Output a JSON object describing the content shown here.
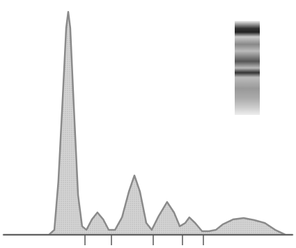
{
  "chart_data": {
    "type": "area",
    "x": [
      0,
      15.7,
      17.6,
      19.0,
      20.5,
      21.7,
      22.4,
      23.1,
      24.3,
      25.8,
      27.2,
      28.7,
      30.6,
      32.5,
      34.5,
      36.4,
      38.6,
      41.0,
      43.4,
      45.3,
      47.2,
      49.4,
      51.3,
      53.7,
      56.6,
      59.0,
      61.0,
      62.9,
      64.3,
      66.3,
      68.7,
      71.1,
      73.5,
      75.9,
      79.5,
      83.1,
      86.7,
      90.4,
      94.0,
      97.6,
      100
    ],
    "values": [
      0,
      0,
      2.2,
      24.1,
      61.6,
      92.8,
      100,
      92.8,
      58.4,
      17.8,
      3.8,
      2.2,
      6.9,
      10,
      6.9,
      2.2,
      2.2,
      7.8,
      19.4,
      26.6,
      19.4,
      5.3,
      2.2,
      8.4,
      14.7,
      10,
      3.8,
      5.3,
      7.8,
      5.3,
      1.6,
      1.6,
      2.2,
      4.7,
      6.9,
      7.5,
      6.6,
      5.3,
      2.2,
      0,
      0
    ],
    "xlim": [
      0,
      100
    ],
    "ylim": [
      0,
      100
    ],
    "color": "#8a8a8a"
  }
}
